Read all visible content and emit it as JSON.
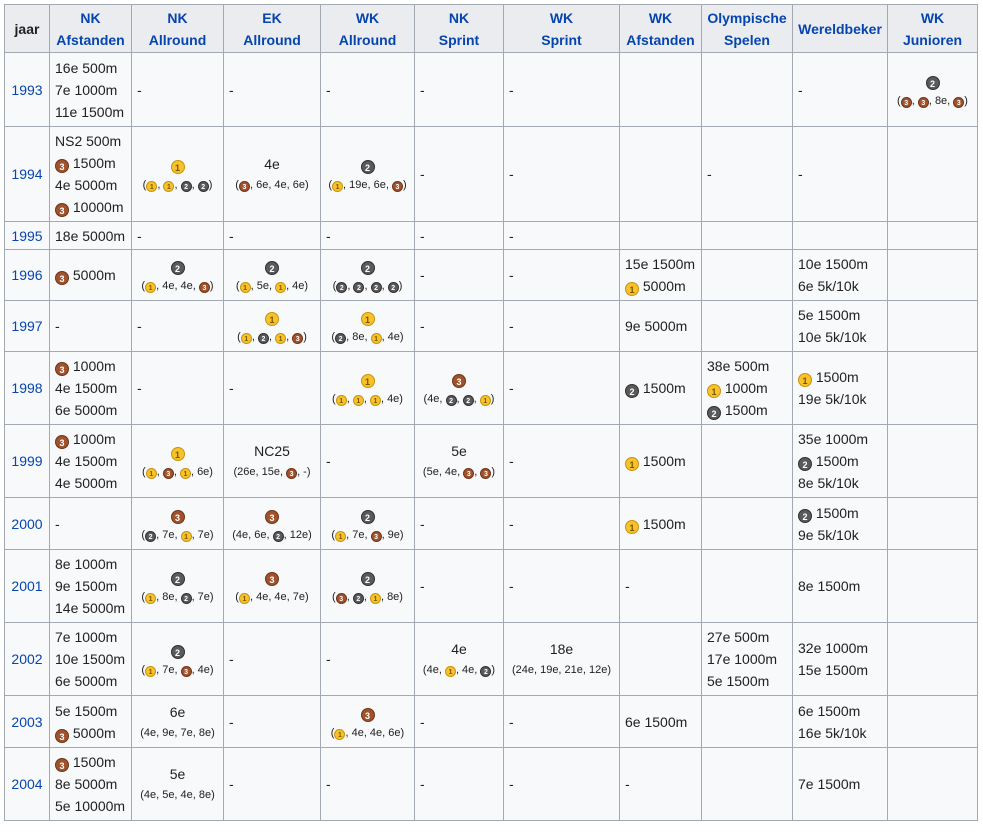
{
  "headers": [
    [
      "jaar"
    ],
    [
      "NK",
      "Afstanden"
    ],
    [
      "NK",
      "Allround"
    ],
    [
      "EK",
      "Allround"
    ],
    [
      "WK",
      "Allround"
    ],
    [
      "NK",
      "Sprint"
    ],
    [
      "WK",
      "Sprint"
    ],
    [
      "WK",
      "Afstanden"
    ],
    [
      "Olympische",
      "Spelen"
    ],
    [
      "Wereldbeker"
    ],
    [
      "WK",
      "Junioren"
    ]
  ],
  "rows": [
    {
      "year": "1993",
      "h": 74,
      "cells": [
        {
          "lines": [
            "16e 500m",
            "7e 1000m",
            "11e 1500m"
          ]
        },
        {
          "text": "-"
        },
        {
          "text": "-"
        },
        {
          "text": "-"
        },
        {
          "text": "-"
        },
        {
          "text": "-"
        },
        {
          "text": ""
        },
        {
          "text": ""
        },
        {
          "text": "-"
        },
        {
          "center": true,
          "main": "@2",
          "sub": "(@3, @3, 8e, @3)"
        }
      ]
    },
    {
      "year": "1994",
      "h": 95,
      "cells": [
        {
          "lines": [
            "NS2 500m",
            "@3 1500m",
            "4e 5000m",
            "@3 10000m"
          ]
        },
        {
          "center": true,
          "main": "@1",
          "sub": "(@1, @1, @2, @2)"
        },
        {
          "center": true,
          "main": "4e",
          "sub": "(@3, 6e, 4e, 6e)"
        },
        {
          "center": true,
          "main": "@2",
          "sub": "(@1, 19e, 6e, @3)"
        },
        {
          "text": "-"
        },
        {
          "text": "-"
        },
        {
          "text": ""
        },
        {
          "text": "-"
        },
        {
          "text": "-"
        },
        {
          "text": ""
        }
      ]
    },
    {
      "year": "1995",
      "h": 28,
      "cells": [
        {
          "lines": [
            "18e 5000m"
          ]
        },
        {
          "text": "-"
        },
        {
          "text": "-"
        },
        {
          "text": "-"
        },
        {
          "text": "-"
        },
        {
          "text": "-"
        },
        {
          "text": ""
        },
        {
          "text": ""
        },
        {
          "text": ""
        },
        {
          "text": ""
        }
      ]
    },
    {
      "year": "1996",
      "h": 51,
      "cells": [
        {
          "lines": [
            "@3 5000m"
          ]
        },
        {
          "center": true,
          "main": "@2",
          "sub": "(@1, 4e, 4e, @3)"
        },
        {
          "center": true,
          "main": "@2",
          "sub": "(@1, 5e, @1, 4e)"
        },
        {
          "center": true,
          "main": "@2",
          "sub": "(@2, @2, @2, @2)"
        },
        {
          "text": "-"
        },
        {
          "text": "-"
        },
        {
          "lines": [
            "15e 1500m",
            "@1 5000m"
          ]
        },
        {
          "text": ""
        },
        {
          "lines": [
            "10e 1500m",
            "6e 5k/10k"
          ]
        },
        {
          "text": ""
        }
      ]
    },
    {
      "year": "1997",
      "h": 51,
      "cells": [
        {
          "text": "-"
        },
        {
          "text": "-"
        },
        {
          "center": true,
          "main": "@1",
          "sub": "(@1, @2, @1, @3)"
        },
        {
          "center": true,
          "main": "@1",
          "sub": "(@2, 8e, @1, 4e)"
        },
        {
          "text": "-"
        },
        {
          "text": "-"
        },
        {
          "lines": [
            "9e 5000m"
          ]
        },
        {
          "text": ""
        },
        {
          "lines": [
            "5e 1500m",
            "10e 5k/10k"
          ]
        },
        {
          "text": ""
        }
      ]
    },
    {
      "year": "1998",
      "h": 73,
      "cells": [
        {
          "lines": [
            "@3 1000m",
            "4e 1500m",
            "6e 5000m"
          ]
        },
        {
          "text": "-"
        },
        {
          "text": "-"
        },
        {
          "center": true,
          "main": "@1",
          "sub": "(@1, @1, @1, 4e)"
        },
        {
          "center": true,
          "main": "@3",
          "sub": "(4e, @2, @2, @1)"
        },
        {
          "text": "-"
        },
        {
          "lines": [
            "@2 1500m"
          ]
        },
        {
          "lines": [
            "38e 500m",
            "@1 1000m",
            "@2 1500m"
          ]
        },
        {
          "lines": [
            "@1 1500m",
            "19e 5k/10k"
          ]
        },
        {
          "text": ""
        }
      ]
    },
    {
      "year": "1999",
      "h": 73,
      "cells": [
        {
          "lines": [
            "@3 1000m",
            "4e 1500m",
            "4e 5000m"
          ]
        },
        {
          "center": true,
          "main": "@1",
          "sub": "(@1, @3, @1, 6e)"
        },
        {
          "center": true,
          "main": "NC25",
          "sub": "(26e, 15e, @3, -)"
        },
        {
          "text": "-"
        },
        {
          "center": true,
          "main": "5e",
          "sub": "(5e, 4e, @3, @3)"
        },
        {
          "text": "-"
        },
        {
          "lines": [
            "@1 1500m"
          ]
        },
        {
          "text": ""
        },
        {
          "lines": [
            "35e 1000m",
            "@2 1500m",
            "8e 5k/10k"
          ]
        },
        {
          "text": ""
        }
      ]
    },
    {
      "year": "2000",
      "h": 52,
      "cells": [
        {
          "text": "-"
        },
        {
          "center": true,
          "main": "@3",
          "sub": "(@2, 7e, @1, 7e)"
        },
        {
          "center": true,
          "main": "@3",
          "sub": "(4e, 6e, @2, 12e)"
        },
        {
          "center": true,
          "main": "@2",
          "sub": "(@1, 7e, @3, 9e)"
        },
        {
          "text": "-"
        },
        {
          "text": "-"
        },
        {
          "lines": [
            "@1 1500m"
          ]
        },
        {
          "text": ""
        },
        {
          "lines": [
            "@2 1500m",
            "9e 5k/10k"
          ]
        },
        {
          "text": ""
        }
      ]
    },
    {
      "year": "2001",
      "h": 73,
      "cells": [
        {
          "lines": [
            "8e 1000m",
            "9e 1500m",
            "14e 5000m"
          ]
        },
        {
          "center": true,
          "main": "@2",
          "sub": "(@1, 8e, @2, 7e)"
        },
        {
          "center": true,
          "main": "@3",
          "sub": "(@1, 4e, 4e, 7e)"
        },
        {
          "center": true,
          "main": "@2",
          "sub": "(@3, @2, @1, 8e)"
        },
        {
          "text": "-"
        },
        {
          "text": "-"
        },
        {
          "text": "-"
        },
        {
          "text": ""
        },
        {
          "lines": [
            "8e 1500m"
          ]
        },
        {
          "text": ""
        }
      ]
    },
    {
      "year": "2002",
      "h": 73,
      "cells": [
        {
          "lines": [
            "7e 1000m",
            "10e 1500m",
            "6e 5000m"
          ]
        },
        {
          "center": true,
          "main": "@2",
          "sub": "(@1, 7e, @3, 4e)"
        },
        {
          "text": "-"
        },
        {
          "text": "-"
        },
        {
          "center": true,
          "main": "4e",
          "sub": "(4e, @1, 4e, @2)"
        },
        {
          "center": true,
          "main": "18e",
          "sub": "(24e, 19e, 21e, 12e)"
        },
        {
          "text": ""
        },
        {
          "lines": [
            "27e 500m",
            "17e 1000m",
            "5e 1500m"
          ]
        },
        {
          "lines": [
            "32e 1000m",
            "15e 1500m"
          ]
        },
        {
          "text": ""
        }
      ]
    },
    {
      "year": "2003",
      "h": 52,
      "cells": [
        {
          "lines": [
            "5e 1500m",
            "@3 5000m"
          ]
        },
        {
          "center": true,
          "main": "6e",
          "sub": "(4e, 9e, 7e, 8e)"
        },
        {
          "text": "-"
        },
        {
          "center": true,
          "main": "@3",
          "sub": "(@1, 4e, 4e, 6e)"
        },
        {
          "text": "-"
        },
        {
          "text": "-"
        },
        {
          "lines": [
            "6e 1500m"
          ]
        },
        {
          "text": ""
        },
        {
          "lines": [
            "6e 1500m",
            "16e 5k/10k"
          ]
        },
        {
          "text": ""
        }
      ]
    },
    {
      "year": "2004",
      "h": 73,
      "cells": [
        {
          "lines": [
            "@3 1500m",
            "8e 5000m",
            "5e 10000m"
          ]
        },
        {
          "center": true,
          "main": "5e",
          "sub": "(4e, 5e, 4e, 8e)"
        },
        {
          "text": "-"
        },
        {
          "text": "-"
        },
        {
          "text": "-"
        },
        {
          "text": "-"
        },
        {
          "text": "-"
        },
        {
          "text": ""
        },
        {
          "lines": [
            "7e 1500m"
          ]
        },
        {
          "text": ""
        }
      ]
    }
  ],
  "medal_colors": {
    "gold": "#f7c22b",
    "silver": "#5a5a5a",
    "bronze": "#a0522d"
  }
}
